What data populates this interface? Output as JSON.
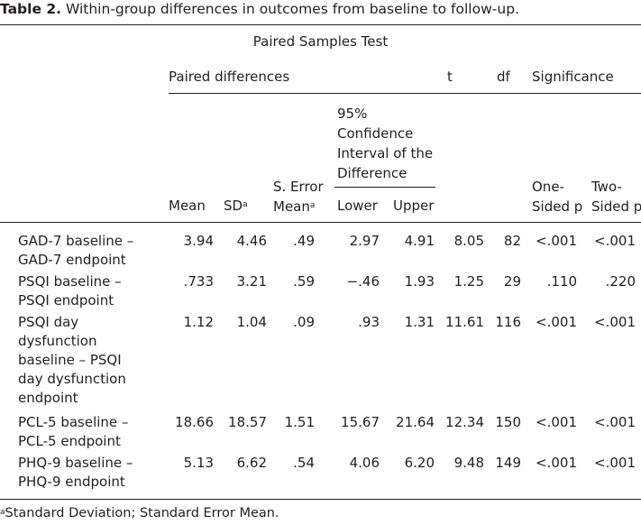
{
  "caption": {
    "label": "Table 2.",
    "text": "Within-group differences in outcomes from baseline to follow-up."
  },
  "table": {
    "title": "Paired Samples Test",
    "group_headers": {
      "paired_differences": "Paired differences",
      "t": "t",
      "df": "df",
      "significance": "Significance"
    },
    "ci_header": [
      "95%",
      "Confidence",
      "Interval of the",
      "Difference"
    ],
    "columns": {
      "mean": "Mean",
      "sd": "SD",
      "sd_sup": "a",
      "se_line1": "S. Error",
      "se_line2": "Mean",
      "se_sup": "a",
      "lower": "Lower",
      "upper": "Upper",
      "one_sided_1": "One-",
      "one_sided_2": "Sided p",
      "two_sided_1": "Two-",
      "two_sided_2": "Sided p"
    },
    "rows": [
      {
        "label": "GAD-7 baseline – GAD-7 endpoint",
        "mean": "3.94",
        "sd": "4.46",
        "se": ".49",
        "lower": "2.97",
        "upper": "4.91",
        "t": "8.05",
        "df": "82",
        "one_sided": "<.001",
        "two_sided": "<.001"
      },
      {
        "label": "PSQI baseline – PSQI endpoint",
        "mean": ".733",
        "sd": "3.21",
        "se": ".59",
        "lower": "−.46",
        "upper": "1.93",
        "t": "1.25",
        "df": "29",
        "one_sided": ".110",
        "two_sided": ".220"
      },
      {
        "label": "PSQI day dysfunction baseline – PSQI day dysfunction endpoint",
        "mean": "1.12",
        "sd": "1.04",
        "se": ".09",
        "lower": ".93",
        "upper": "1.31",
        "t": "11.61",
        "df": "116",
        "one_sided": "<.001",
        "two_sided": "<.001"
      },
      {
        "label": "PCL-5 baseline – PCL-5 endpoint",
        "mean": "18.66",
        "sd": "18.57",
        "se": "1.51",
        "lower": "15.67",
        "upper": "21.64",
        "t": "12.34",
        "df": "150",
        "one_sided": "<.001",
        "two_sided": "<.001"
      },
      {
        "label": "PHQ-9 baseline – PHQ-9 endpoint",
        "mean": "5.13",
        "sd": "6.62",
        "se": ".54",
        "lower": "4.06",
        "upper": "6.20",
        "t": "9.48",
        "df": "149",
        "one_sided": "<.001",
        "two_sided": "<.001"
      }
    ]
  },
  "footnote": {
    "sup": "a",
    "text": "Standard Deviation; Standard Error Mean."
  }
}
